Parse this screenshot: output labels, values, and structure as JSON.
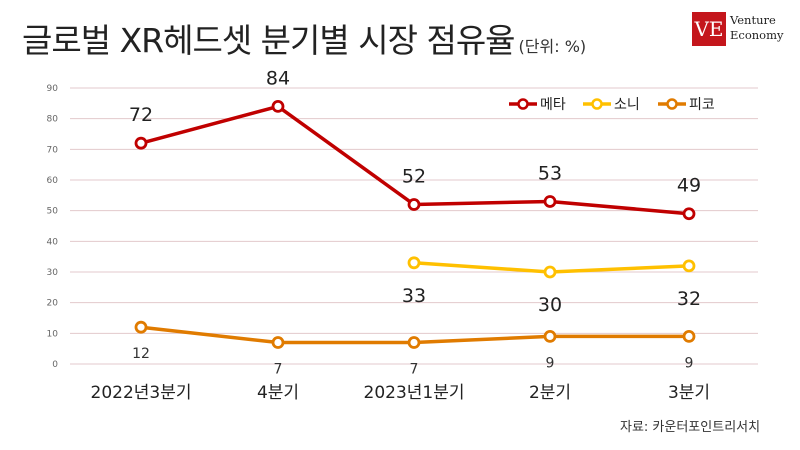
{
  "title": "글로벌 XR헤드셋 분기별 시장 점유율",
  "unit": "(단위: %)",
  "logo": {
    "mark": "VE",
    "line1": "Venture",
    "line2": "Economy"
  },
  "source": "자료: 카운터포인트리서치",
  "chart_data": {
    "type": "line",
    "categories": [
      "2022년3분기",
      "4분기",
      "2023년1분기",
      "2분기",
      "3분기"
    ],
    "ylim": [
      0,
      90
    ],
    "yticks": [
      0,
      10,
      20,
      30,
      40,
      50,
      60,
      70,
      80,
      90
    ],
    "grid": true,
    "legend": "top-right",
    "series": [
      {
        "name": "메타",
        "color": "#c00000",
        "values": [
          72,
          84,
          52,
          53,
          49
        ],
        "labels": [
          "72",
          "84",
          "52",
          "53",
          "49"
        ],
        "label_pos": "above"
      },
      {
        "name": "소니",
        "color": "#ffc000",
        "values": [
          null,
          null,
          33,
          30,
          32
        ],
        "labels": [
          "",
          "",
          "33",
          "30",
          "32"
        ],
        "label_pos": "below"
      },
      {
        "name": "피코",
        "color": "#e07b00",
        "values": [
          12,
          7,
          7,
          9,
          9
        ],
        "labels": [
          "12",
          "7",
          "7",
          "9",
          "9"
        ],
        "label_pos": "below"
      }
    ]
  }
}
